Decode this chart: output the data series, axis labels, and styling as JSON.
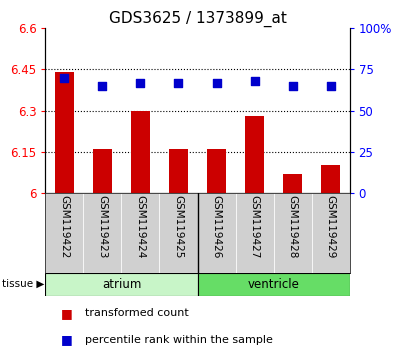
{
  "title": "GDS3625 / 1373899_at",
  "samples": [
    "GSM119422",
    "GSM119423",
    "GSM119424",
    "GSM119425",
    "GSM119426",
    "GSM119427",
    "GSM119428",
    "GSM119429"
  ],
  "red_values": [
    6.44,
    6.16,
    6.3,
    6.16,
    6.16,
    6.28,
    6.07,
    6.1
  ],
  "blue_values": [
    70,
    65,
    67,
    67,
    67,
    68,
    65,
    65
  ],
  "ylim_left": [
    6.0,
    6.6
  ],
  "ylim_right": [
    0,
    100
  ],
  "yticks_left": [
    6.0,
    6.15,
    6.3,
    6.45,
    6.6
  ],
  "yticks_right": [
    0,
    25,
    50,
    75,
    100
  ],
  "ytick_labels_left": [
    "6",
    "6.15",
    "6.3",
    "6.45",
    "6.6"
  ],
  "ytick_labels_right": [
    "0",
    "25",
    "50",
    "75",
    "100%"
  ],
  "hlines": [
    6.15,
    6.3,
    6.45
  ],
  "tissue_groups": [
    {
      "label": "atrium",
      "start": 0,
      "end": 4,
      "color": "#c8f5c8"
    },
    {
      "label": "ventricle",
      "start": 4,
      "end": 8,
      "color": "#66dd66"
    }
  ],
  "bar_color": "#cc0000",
  "dot_color": "#0000cc",
  "bar_width": 0.5,
  "dot_size": 30,
  "legend_items": [
    {
      "color": "#cc0000",
      "label": "transformed count"
    },
    {
      "color": "#0000cc",
      "label": "percentile rank within the sample"
    }
  ],
  "title_fontsize": 11,
  "tick_fontsize": 8.5,
  "sample_fontsize": 7.5,
  "legend_fontsize": 8
}
